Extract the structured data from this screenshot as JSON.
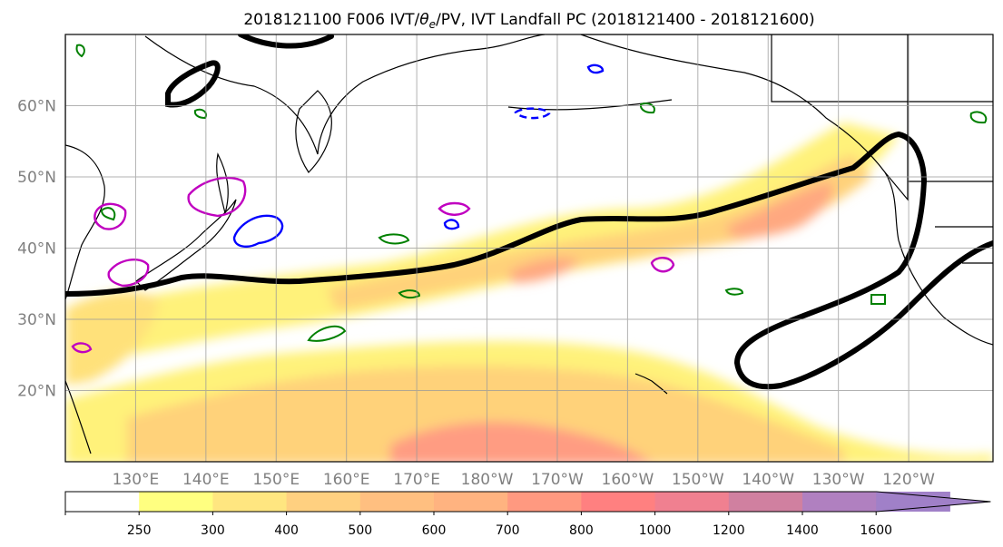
{
  "title": {
    "before": "2018121100 F006 IVT/",
    "theta": "θ",
    "sub": "e",
    "after": "/PV, IVT Landfall PC (2018121400 - 2018121600)"
  },
  "map": {
    "lon_ticks": [
      "130°E",
      "140°E",
      "150°E",
      "160°E",
      "170°E",
      "180°W",
      "170°W",
      "160°W",
      "150°W",
      "140°W",
      "130°W",
      "120°W"
    ],
    "lat_ticks": [
      "60°N",
      "50°N",
      "40°N",
      "30°N",
      "20°N"
    ],
    "lon_values": [
      130,
      140,
      150,
      160,
      170,
      180,
      190,
      200,
      210,
      220,
      230,
      240
    ],
    "lat_values": [
      60,
      50,
      40,
      30,
      20
    ],
    "lon_range": [
      120,
      252
    ],
    "lat_range": [
      10,
      70
    ],
    "grid": true,
    "tick_label_color": "#808080"
  },
  "colorbar": {
    "levels": [
      "250",
      "300",
      "400",
      "500",
      "600",
      "700",
      "800",
      "1000",
      "1200",
      "1400",
      "1600"
    ],
    "colors": [
      "#ffffff",
      "#ffff80",
      "#ffe680",
      "#ffd080",
      "#ffbf80",
      "#ffb380",
      "#ff9980",
      "#ff8080",
      "#f08090",
      "#d080a0",
      "#b080c0",
      "#a080c8"
    ],
    "extend": "max"
  },
  "contours": {
    "pc_color": "#000000",
    "theta_e_color": "#008000",
    "pv_pos_color": "#c000c0",
    "pv_neg_color": "#0000ff"
  }
}
